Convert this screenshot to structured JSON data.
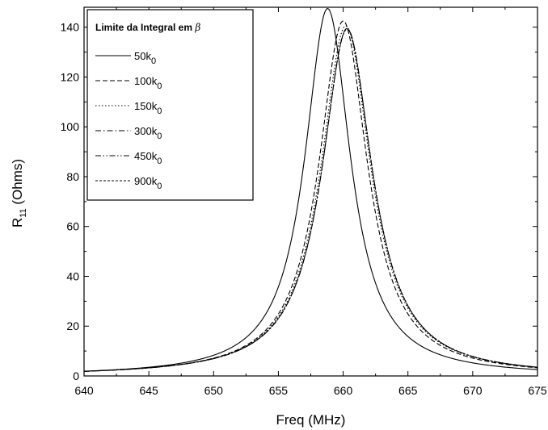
{
  "chart_data": {
    "type": "line",
    "xlabel": "Freq (MHz)",
    "ylabel": {
      "main": "R",
      "sub": "11",
      "unit": " (Ohms)"
    },
    "xlim": [
      640,
      675
    ],
    "ylim": [
      0,
      148
    ],
    "xticks": [
      640,
      645,
      650,
      655,
      660,
      665,
      670,
      675
    ],
    "yticks": [
      0,
      20,
      40,
      60,
      80,
      100,
      120,
      140
    ],
    "grid": false,
    "legend": {
      "position": "top-left",
      "title_text": "Limite da Integral em ",
      "title_symbol": "β"
    },
    "series": [
      {
        "name": {
          "value": "50k",
          "sub": "0"
        },
        "dash": "solid",
        "f0": 658.8,
        "peak": 147.5,
        "gamma": 2.15
      },
      {
        "name": {
          "value": "100k",
          "sub": "0"
        },
        "dash": "dash",
        "f0": 660.0,
        "peak": 142.5,
        "gamma": 2.3
      },
      {
        "name": {
          "value": "150k",
          "sub": "0"
        },
        "dash": "dot",
        "f0": 660.2,
        "peak": 140.5,
        "gamma": 2.35
      },
      {
        "name": {
          "value": "300k",
          "sub": "0"
        },
        "dash": "dashdot",
        "f0": 660.3,
        "peak": 139.5,
        "gamma": 2.36
      },
      {
        "name": {
          "value": "450k",
          "sub": "0"
        },
        "dash": "dashdotdot",
        "f0": 660.3,
        "peak": 139.3,
        "gamma": 2.36
      },
      {
        "name": {
          "value": "900k",
          "sub": "0"
        },
        "dash": "shortdash",
        "f0": 660.3,
        "peak": 139.2,
        "gamma": 2.37
      }
    ]
  }
}
